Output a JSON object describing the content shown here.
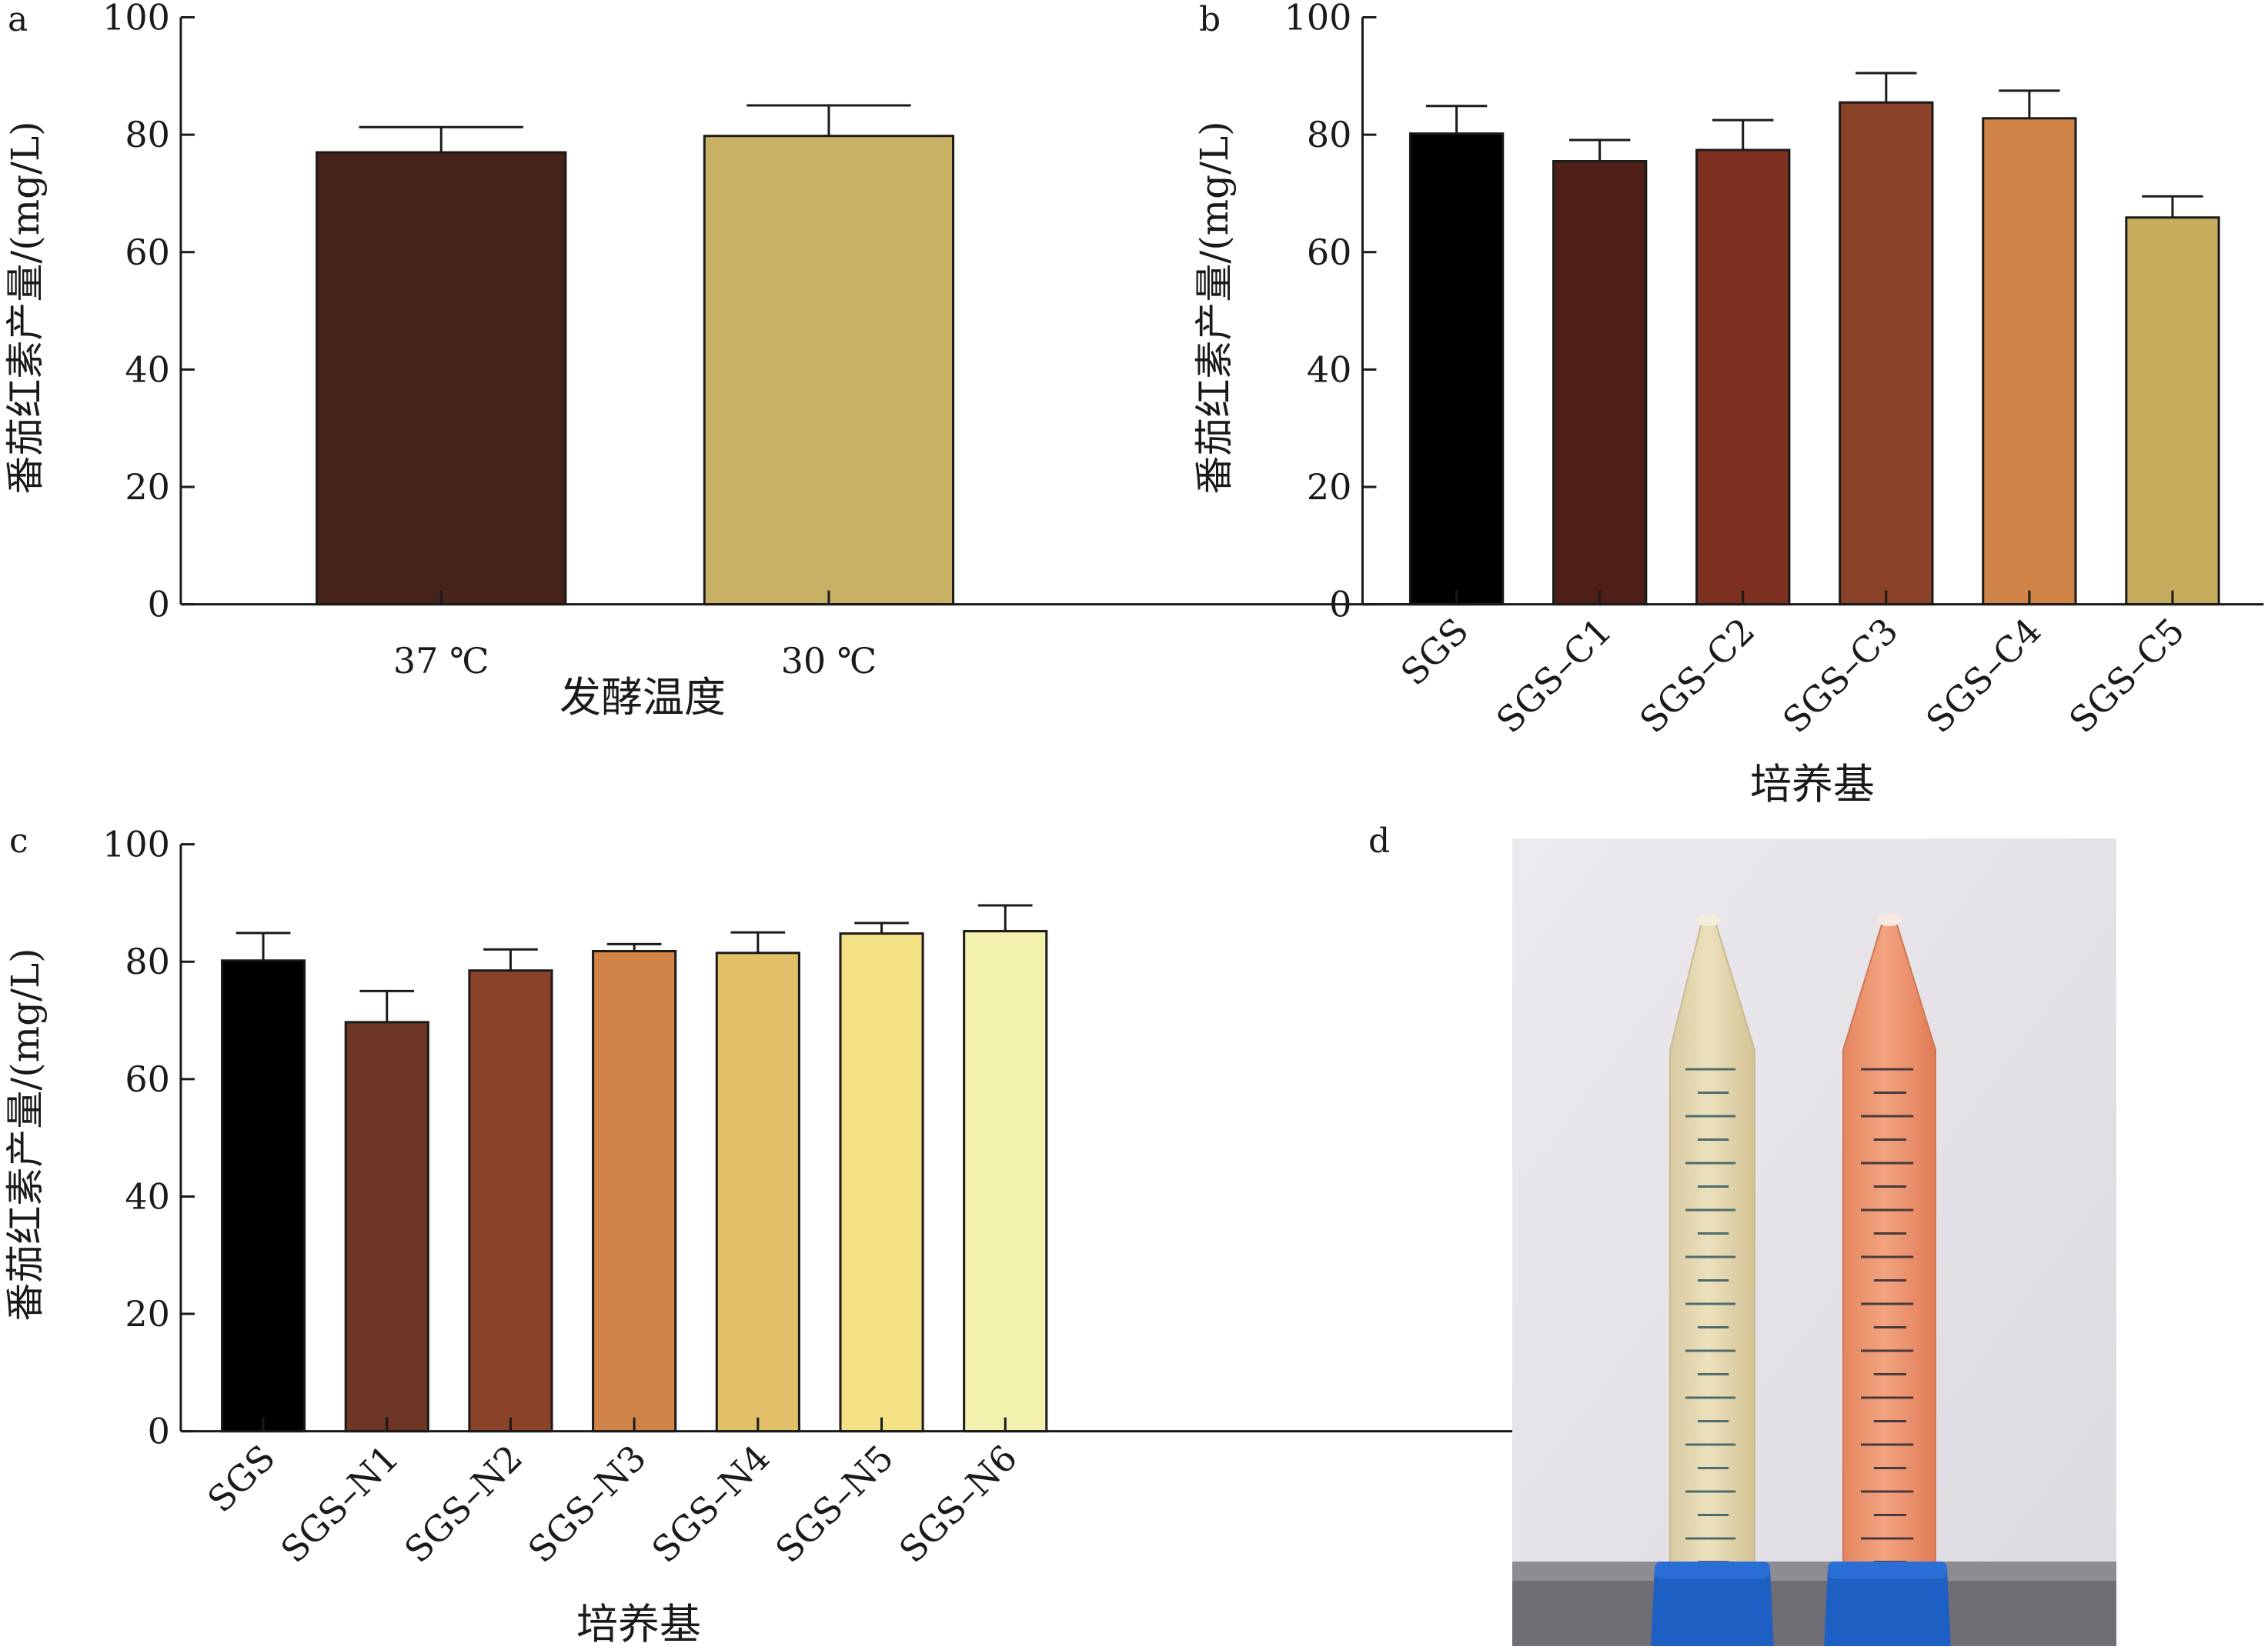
{
  "chart_data": [
    {
      "panel": "a",
      "type": "bar",
      "ylabel": "番茄红素产量/(mg/L)",
      "xlabel": "发酵温度",
      "ylim": [
        0,
        100
      ],
      "yticks": [
        0,
        20,
        40,
        60,
        80,
        100
      ],
      "categories": [
        "37 ℃",
        "30 ℃"
      ],
      "values": [
        77,
        79.8
      ],
      "errors": [
        4.3,
        5.2
      ],
      "colors": [
        "#452319",
        "#c8b064"
      ]
    },
    {
      "panel": "b",
      "type": "bar",
      "ylabel": "番茄红素产量/(mg/L)",
      "xlabel": "培养基",
      "ylim": [
        0,
        100
      ],
      "yticks": [
        0,
        20,
        40,
        60,
        80,
        100
      ],
      "categories": [
        "SGS",
        "SGS–C1",
        "SGS–C2",
        "SGS–C3",
        "SGS–C4",
        "SGS–C5"
      ],
      "values": [
        80.2,
        75.5,
        77.4,
        85.5,
        82.8,
        65.9
      ],
      "errors": [
        4.7,
        3.6,
        5.1,
        5.0,
        4.7,
        3.6
      ],
      "colors": [
        "#000000",
        "#4e1f17",
        "#7d3020",
        "#8a4329",
        "#d18447",
        "#c7ab5d"
      ]
    },
    {
      "panel": "c",
      "type": "bar",
      "ylabel": "番茄红素产量/(mg/L)",
      "xlabel": "培养基",
      "ylim": [
        0,
        100
      ],
      "yticks": [
        0,
        20,
        40,
        60,
        80,
        100
      ],
      "categories": [
        "SGS",
        "SGS–N1",
        "SGS–N2",
        "SGS–N3",
        "SGS–N4",
        "SGS–N5",
        "SGS–N6"
      ],
      "values": [
        80.2,
        69.7,
        78.5,
        81.8,
        81.5,
        84.8,
        85.2
      ],
      "errors": [
        4.7,
        5.3,
        3.6,
        1.2,
        3.5,
        1.8,
        4.4
      ],
      "colors": [
        "#000000",
        "#6e3624",
        "#8a4329",
        "#d18447",
        "#e3c06a",
        "#f4e185",
        "#f2f2ae"
      ]
    }
  ],
  "photo": {
    "panel": "d",
    "tube_colors": [
      "#e9ddb6",
      "#ef9a76"
    ],
    "cap_color": "#1e5fc4",
    "wall_color": "#e7e4ea",
    "floor_color": "#6f6e74"
  }
}
